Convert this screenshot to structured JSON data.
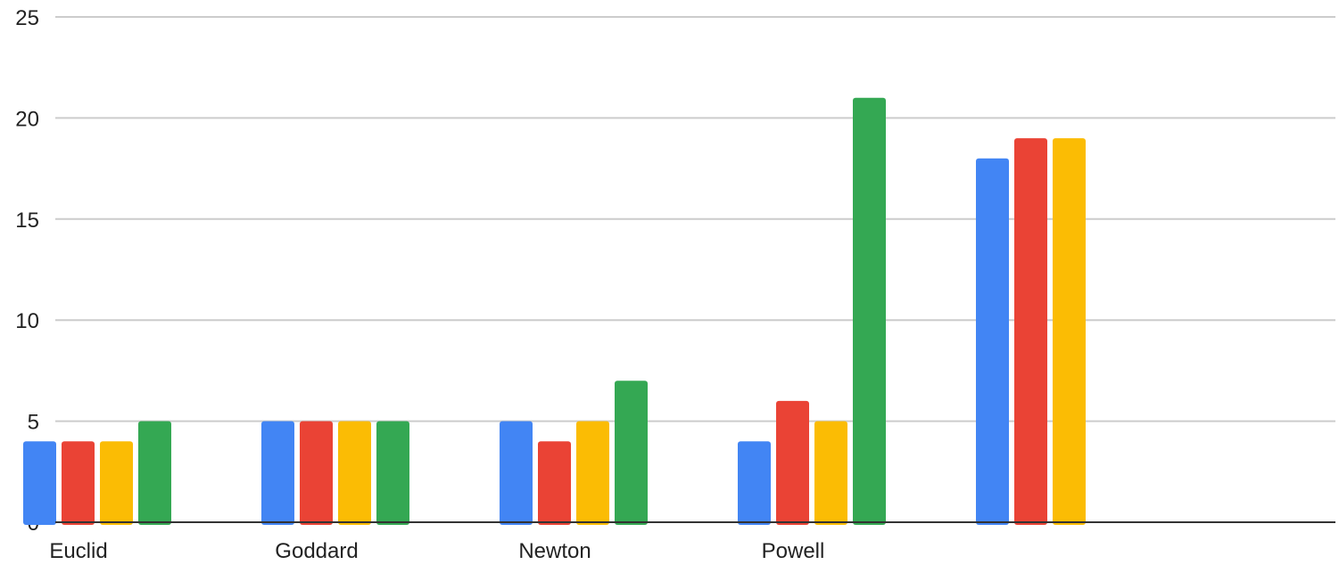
{
  "chart_data": {
    "type": "bar",
    "categories": [
      "Euclid",
      "Goddard",
      "Newton",
      "Powell",
      ""
    ],
    "series": [
      {
        "color": "#4285F4",
        "values": [
          4,
          5,
          5,
          4,
          18
        ]
      },
      {
        "color": "#EA4335",
        "values": [
          4,
          5,
          4,
          6,
          19
        ]
      },
      {
        "color": "#FBBC04",
        "values": [
          4,
          5,
          5,
          5,
          19
        ]
      },
      {
        "color": "#34A853",
        "values": [
          5,
          5,
          7,
          21,
          null
        ]
      }
    ],
    "ylim": [
      0,
      25
    ],
    "yticks": [
      0,
      5,
      10,
      15,
      20,
      25
    ],
    "grid": true,
    "legend": "none"
  }
}
